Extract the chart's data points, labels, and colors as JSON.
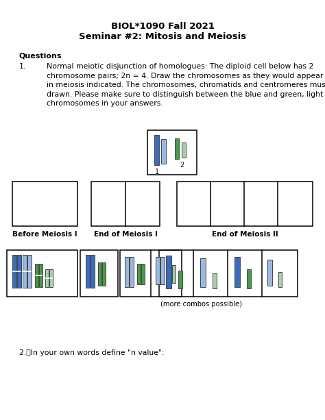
{
  "title_line1": "BIOL*1090 Fall 2021",
  "title_line2": "Seminar #2: Mitosis and Meiosis",
  "section_header": "Questions",
  "q1_num": "1.",
  "q1_body": "Normal meiotic disjunction of homologues: The diploid cell below has 2\nchromosome pairs; 2n = 4. Draw the chromosomes as they would appear at each point\nin meiosis indicated. The chromosomes, chromatids and centromeres must be clearly\ndrawn. Please make sure to distinguish between the blue and green, light and dark\nchromosomes in your answers.",
  "question2_text": "2.\tIn your own words define \"n value\":",
  "more_combos": "(more combos possible)",
  "label_before": "Before Meiosis I",
  "label_end1": "End of Meiosis I",
  "label_end2": "End of Meiosis II",
  "dark_blue": "#3B6BBF",
  "light_blue": "#9BB8E0",
  "dark_green": "#4A9A4A",
  "light_green": "#A8D0A8",
  "bg_color": "#ffffff"
}
